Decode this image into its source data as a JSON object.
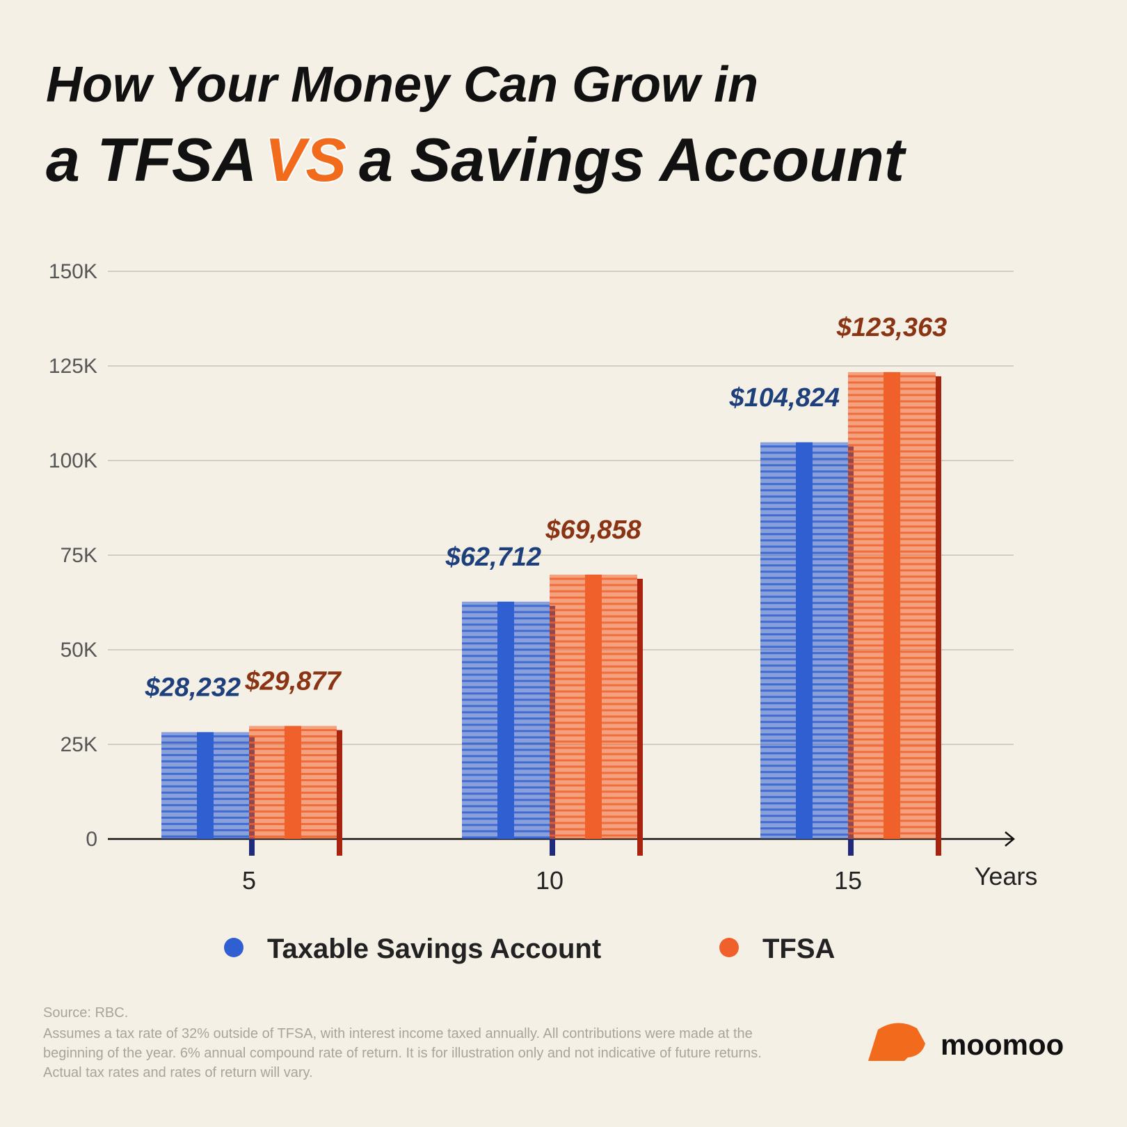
{
  "chart_data": {
    "type": "bar",
    "title_line1": "How Your Money Can Grow in",
    "title_line2_a": "a TFSA",
    "title_line2_vs": "VS",
    "title_line2_b": "a Savings Account",
    "x_label": "Years",
    "categories": [
      "5",
      "10",
      "15"
    ],
    "series": [
      {
        "name": "Taxable Savings Account",
        "color": "#2f5fd0",
        "label_color": "#1d3f7c",
        "values": [
          28232,
          62712,
          104824
        ],
        "value_labels": [
          "$28,232",
          "$62,712",
          "$104,824"
        ]
      },
      {
        "name": "TFSA",
        "color": "#f0602a",
        "label_color": "#8a3414",
        "values": [
          29877,
          69858,
          123363
        ],
        "value_labels": [
          "$29,877",
          "$69,858",
          "$123,363"
        ]
      }
    ],
    "ylim": [
      0,
      150000
    ],
    "yticks": [
      0,
      {
        "value": 25000,
        "label": "25K"
      },
      {
        "value": 50000,
        "label": "50K"
      },
      {
        "value": 75000,
        "label": "75K"
      },
      {
        "value": 100000,
        "label": "100K"
      },
      {
        "value": 125000,
        "label": "125K"
      },
      {
        "value": 150000,
        "label": "150K"
      }
    ],
    "grid": true,
    "source": "Source: RBC.",
    "footnote_lines": [
      "Assumes a tax rate of 32% outside of TFSA, with interest income taxed annually. All contributions were made at the",
      "beginning of the year. 6% annual compound rate of return. It is for illustration only and not indicative of future returns.",
      "Actual tax rates and rates of return will vary."
    ],
    "brand": "moomoo"
  }
}
